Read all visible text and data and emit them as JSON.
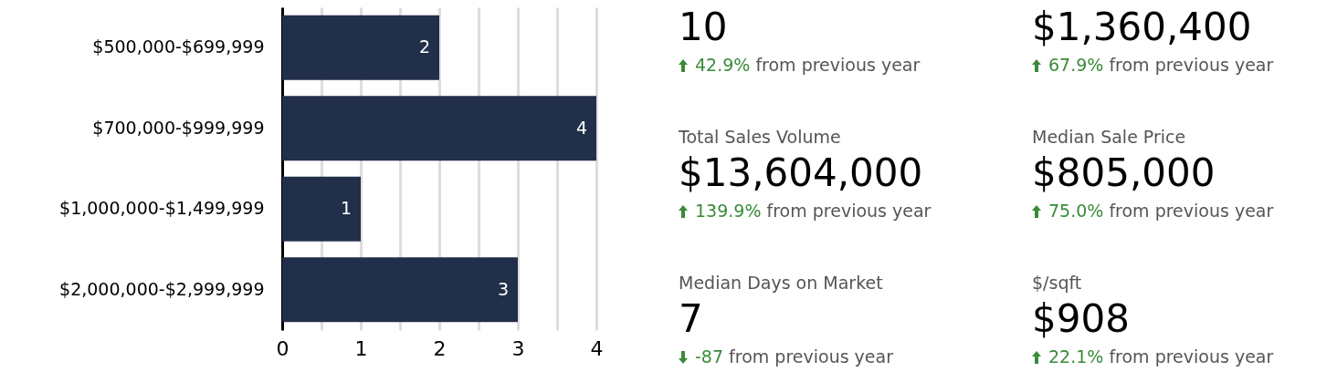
{
  "chart_data": [
    {
      "type": "bar",
      "orientation": "horizontal",
      "categories": [
        "$500,000-$699,999",
        "$700,000-$999,999",
        "$1,000,000-$1,499,999",
        "$2,000,000-$2,999,999"
      ],
      "values": [
        2,
        4,
        1,
        3
      ],
      "color": "#222f4a",
      "data_labels": true,
      "xlim": [
        0,
        4
      ],
      "xticks": [
        0,
        {
          "value": 0.5,
          "label": null
        },
        1,
        {
          "value": 1.5,
          "label": null
        },
        2,
        {
          "value": 2.5,
          "label": null
        },
        3,
        {
          "value": 3.5,
          "label": null
        },
        4
      ],
      "grid": "x"
    },
    {
      "type": "other",
      "annotations": [
        "10",
        "42.9%",
        "from previous year"
      ]
    },
    {
      "type": "other",
      "annotations": [
        "$1,360,400",
        "67.9%",
        "from previous year"
      ]
    },
    {
      "type": "other",
      "title": "Total Sales Volume",
      "annotations": [
        "$13,604,000",
        "139.9%",
        "from previous year"
      ]
    },
    {
      "type": "other",
      "title": "Median Sale Price",
      "annotations": [
        "$805,000",
        "75.0%",
        "from previous year"
      ]
    },
    {
      "type": "other",
      "title": "Median Days on Market",
      "annotations": [
        "7",
        "-87",
        "from previous year"
      ]
    },
    {
      "type": "other",
      "title": "$/sqft",
      "annotations": [
        "$908",
        "22.1%",
        "from previous year"
      ]
    }
  ]
}
